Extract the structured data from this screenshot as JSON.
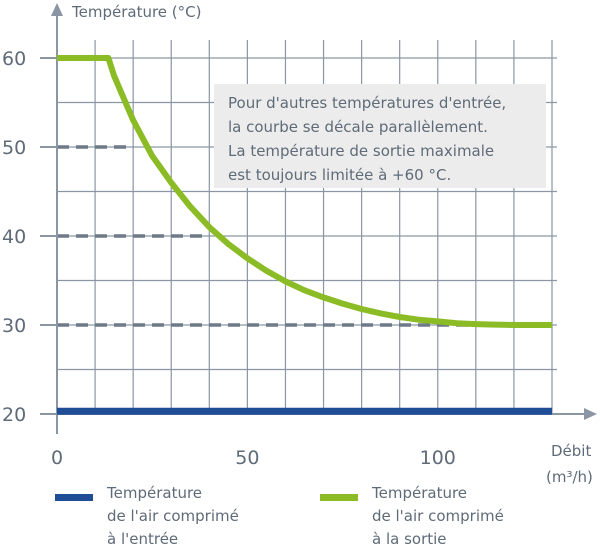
{
  "chart_data": {
    "type": "line",
    "ylabel": "Température (°C)",
    "xlabel_line1": "Débit",
    "xlabel_line2": "(m³/h)",
    "xlim": [
      0,
      130
    ],
    "ylim": [
      20,
      60
    ],
    "x_ticks": [
      0,
      50,
      100
    ],
    "y_ticks": [
      20,
      30,
      40,
      50,
      60
    ],
    "grid": true,
    "grid_color": "#8a96a3",
    "series": [
      {
        "name": "Température de l'air comprimé à l'entrée",
        "legend_lines": [
          "Température",
          "de l'air comprimé",
          "à l'entrée"
        ],
        "color": "#1f4e96",
        "x": [
          0,
          130
        ],
        "y": [
          20.3,
          20.3
        ]
      },
      {
        "name": "Température de l'air comprimé à la sortie",
        "legend_lines": [
          "Température",
          "de l'air comprimé",
          "à la sortie"
        ],
        "color": "#8bbb25",
        "x": [
          0,
          13.5,
          15,
          17.5,
          20,
          25,
          30,
          35,
          40,
          45,
          50,
          55,
          60,
          65,
          70,
          75,
          80,
          85,
          90,
          95,
          100,
          105,
          110,
          115,
          120,
          125,
          130
        ],
        "y": [
          60,
          60,
          58,
          55.5,
          53,
          49,
          46,
          43.3,
          41,
          39.1,
          37.5,
          36.1,
          34.9,
          33.9,
          33.1,
          32.4,
          31.8,
          31.3,
          30.9,
          30.6,
          30.4,
          30.2,
          30.1,
          30.05,
          30,
          30,
          30
        ]
      }
    ],
    "reference_lines": {
      "style": "dashed",
      "color": "#6e7a87",
      "lines": [
        {
          "y": 50,
          "x_end": 20
        },
        {
          "y": 40,
          "x_end": 40
        },
        {
          "y": 30,
          "x_end": 110
        }
      ]
    },
    "annotation": {
      "lines": [
        "Pour d'autres températures d'entrée,",
        "la courbe se décale parallèlement.",
        "La température de sortie maximale",
        "est toujours limitée à +60 °C."
      ],
      "background": "#ececec"
    },
    "legend_position": "bottom"
  }
}
